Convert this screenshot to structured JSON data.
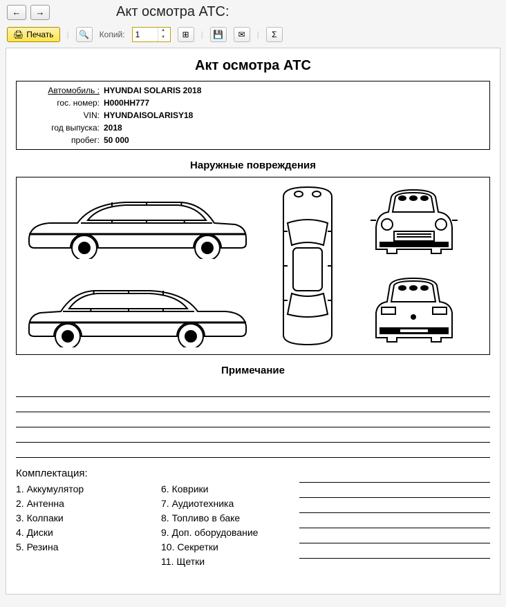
{
  "header": {
    "page_title": "Акт осмотра АТС:"
  },
  "toolbar": {
    "print_label": "Печать",
    "copies_label": "Копий:",
    "copies_value": "1"
  },
  "document": {
    "title": "Акт осмотра АТС",
    "info": {
      "car_label": "Автомобиль :",
      "car_value": "HYUNDAI SOLARIS 2018",
      "plate_label": "гос. номер:",
      "plate_value": "Н000НН777",
      "vin_label": "VIN:",
      "vin_value": "HYUNDAISOLARISY18",
      "year_label": "год выпуска:",
      "year_value": "2018",
      "mileage_label": "пробег:",
      "mileage_value": "50 000"
    },
    "damage_title": "Наружные повреждения",
    "note_title": "Примечание",
    "equipment_title": "Комплектация:",
    "equipment_col1": [
      "1. Аккумулятор",
      "2. Антенна",
      "3. Колпаки",
      "4. Диски",
      "5. Резина"
    ],
    "equipment_col2": [
      "6. Коврики",
      "7. Аудиотехника",
      "8. Топливо в баке",
      "9. Доп. оборудование",
      "10. Секретки",
      "11. Щетки"
    ]
  },
  "style": {
    "diagram_stroke": "#000000",
    "diagram_bg": "#ffffff",
    "line_color": "#000000",
    "page_bg": "#f5f5f5",
    "print_btn_bg": "#ffe34a"
  }
}
